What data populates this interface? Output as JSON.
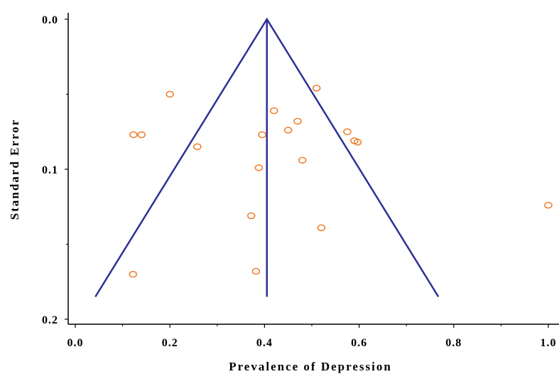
{
  "chart_data": {
    "type": "scatter",
    "title": "",
    "xlabel": "Prevalence of Depression",
    "ylabel": "Standard Error",
    "xlim": [
      0.0,
      1.0
    ],
    "ylim": [
      0.0,
      0.2
    ],
    "y_inverted": true,
    "grid": false,
    "x_ticks": [
      "0.0",
      "0.2",
      "0.4",
      "0.6",
      "0.8",
      "1.0"
    ],
    "y_ticks": [
      "0.0",
      "0.1",
      "0.2"
    ],
    "pooled_estimate": 0.405,
    "funnel_max_se": 0.185,
    "funnel_color": "#2e3192",
    "point_color": "#f07c2a",
    "points": [
      {
        "x": 0.2,
        "y": 0.05
      },
      {
        "x": 0.51,
        "y": 0.046
      },
      {
        "x": 0.42,
        "y": 0.061
      },
      {
        "x": 0.47,
        "y": 0.068
      },
      {
        "x": 0.45,
        "y": 0.074
      },
      {
        "x": 0.395,
        "y": 0.077
      },
      {
        "x": 0.123,
        "y": 0.077
      },
      {
        "x": 0.14,
        "y": 0.077
      },
      {
        "x": 0.575,
        "y": 0.075
      },
      {
        "x": 0.59,
        "y": 0.081
      },
      {
        "x": 0.597,
        "y": 0.082
      },
      {
        "x": 0.258,
        "y": 0.085
      },
      {
        "x": 0.48,
        "y": 0.094
      },
      {
        "x": 0.388,
        "y": 0.099
      },
      {
        "x": 1.0,
        "y": 0.124
      },
      {
        "x": 0.372,
        "y": 0.131
      },
      {
        "x": 0.52,
        "y": 0.139
      },
      {
        "x": 0.122,
        "y": 0.17
      },
      {
        "x": 0.382,
        "y": 0.168
      }
    ]
  }
}
